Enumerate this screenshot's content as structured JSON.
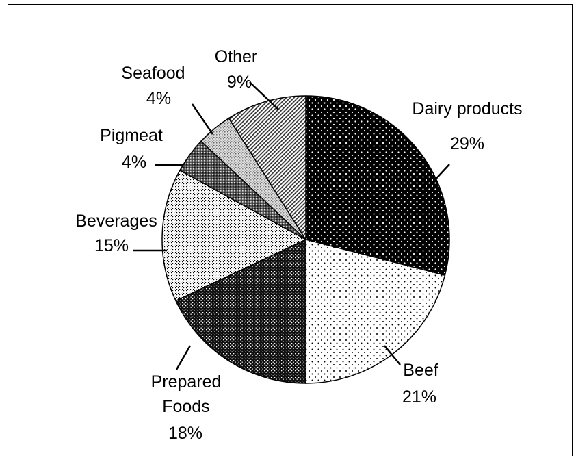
{
  "chart_data": {
    "type": "pie",
    "slices": [
      {
        "label": "Dairy products",
        "value": 29
      },
      {
        "label": "Beef",
        "value": 21
      },
      {
        "label": "Prepared Foods",
        "value": 18
      },
      {
        "label": "Beverages",
        "value": 15
      },
      {
        "label": "Pigmeat",
        "value": 4
      },
      {
        "label": "Seafood",
        "value": 4
      },
      {
        "label": "Other",
        "value": 9
      }
    ],
    "value_labels": [
      "29%",
      "21%",
      "18%",
      "15%",
      "4%",
      "4%",
      "9%"
    ],
    "start": "12 o'clock",
    "direction": "clockwise",
    "legend": "none",
    "labels": "outside slices with leader lines",
    "title": ""
  }
}
